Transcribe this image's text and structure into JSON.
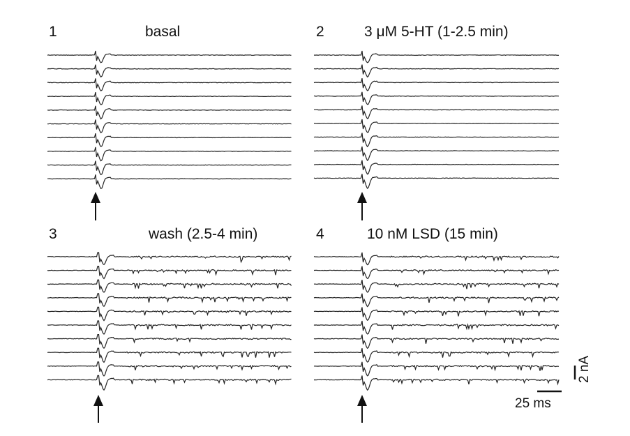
{
  "chart_data": {
    "type": "line",
    "panels": [
      {
        "number": "1",
        "condition": "basal",
        "sweeps": 10,
        "spontaneous_activity": "low"
      },
      {
        "number": "2",
        "condition": "3 μM 5-HT (1-2.5 min)",
        "sweeps": 10,
        "spontaneous_activity": "low"
      },
      {
        "number": "3",
        "condition": "wash (2.5-4 min)",
        "sweeps": 10,
        "spontaneous_activity": "high"
      },
      {
        "number": "4",
        "condition": "10 nM LSD (15 min)",
        "sweeps": 10,
        "spontaneous_activity": "high"
      }
    ],
    "stimulus_marker": "upward arrow",
    "scale_bars": {
      "current": "2 nA",
      "time": "25 ms"
    },
    "grid": false,
    "legend": "none"
  }
}
